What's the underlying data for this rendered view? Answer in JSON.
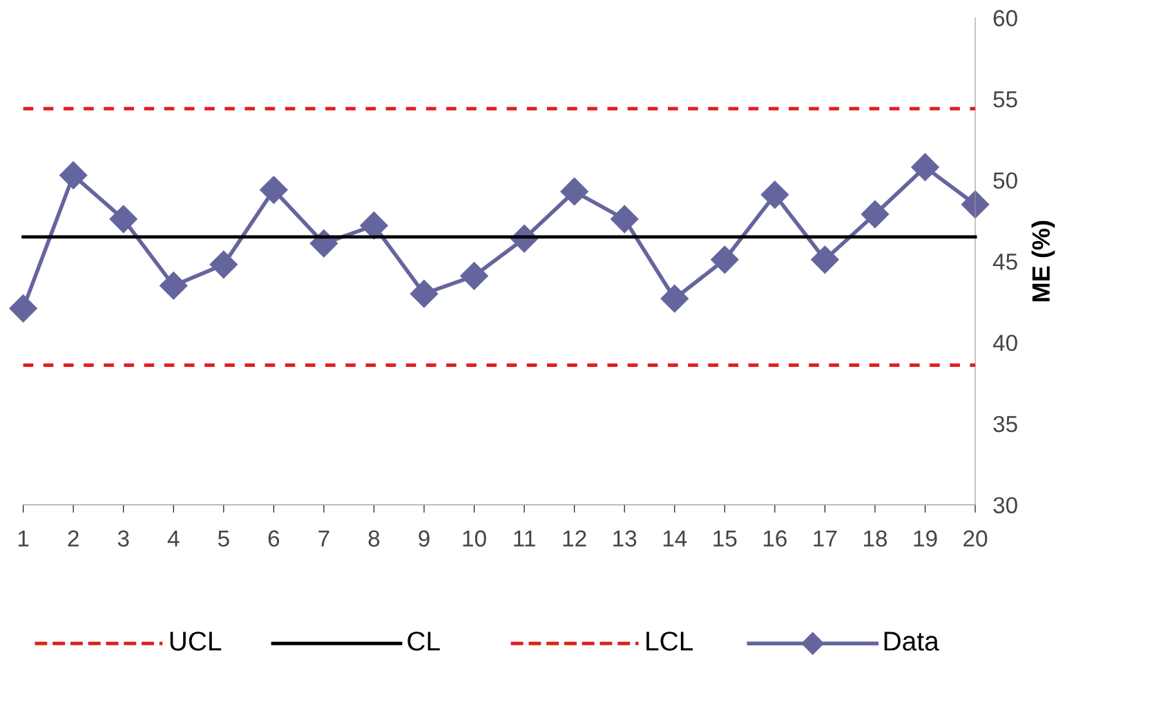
{
  "chart_data": {
    "type": "line",
    "ylabel": "ME (%)",
    "categories": [
      "1",
      "2",
      "3",
      "4",
      "5",
      "6",
      "7",
      "8",
      "9",
      "10",
      "11",
      "12",
      "13",
      "14",
      "15",
      "16",
      "17",
      "18",
      "19",
      "20"
    ],
    "series": [
      {
        "name": "UCL",
        "color": "#e0201b",
        "line_style": "dashed",
        "marker": "none",
        "values": [
          54.4,
          54.4,
          54.4,
          54.4,
          54.4,
          54.4,
          54.4,
          54.4,
          54.4,
          54.4,
          54.4,
          54.4,
          54.4,
          54.4,
          54.4,
          54.4,
          54.4,
          54.4,
          54.4,
          54.4
        ]
      },
      {
        "name": "CL",
        "color": "#000000",
        "line_style": "solid",
        "marker": "none",
        "values": [
          46.5,
          46.5,
          46.5,
          46.5,
          46.5,
          46.5,
          46.5,
          46.5,
          46.5,
          46.5,
          46.5,
          46.5,
          46.5,
          46.5,
          46.5,
          46.5,
          46.5,
          46.5,
          46.5,
          46.5
        ]
      },
      {
        "name": "LCL",
        "color": "#e0201b",
        "line_style": "dashed",
        "marker": "none",
        "values": [
          38.6,
          38.6,
          38.6,
          38.6,
          38.6,
          38.6,
          38.6,
          38.6,
          38.6,
          38.6,
          38.6,
          38.6,
          38.6,
          38.6,
          38.6,
          38.6,
          38.6,
          38.6,
          38.6,
          38.6
        ]
      },
      {
        "name": "Data",
        "color": "#65659e",
        "line_style": "solid",
        "marker": "diamond",
        "values": [
          42.1,
          50.3,
          47.6,
          43.5,
          44.8,
          49.4,
          46.1,
          47.2,
          43.0,
          44.1,
          46.4,
          49.3,
          47.6,
          42.7,
          45.1,
          49.1,
          45.1,
          47.9,
          50.8,
          48.5
        ]
      }
    ],
    "ylim": [
      30,
      60
    ],
    "yticks": [
      30,
      35,
      40,
      45,
      50,
      55,
      60
    ],
    "grid": false,
    "legend": "bottom"
  }
}
